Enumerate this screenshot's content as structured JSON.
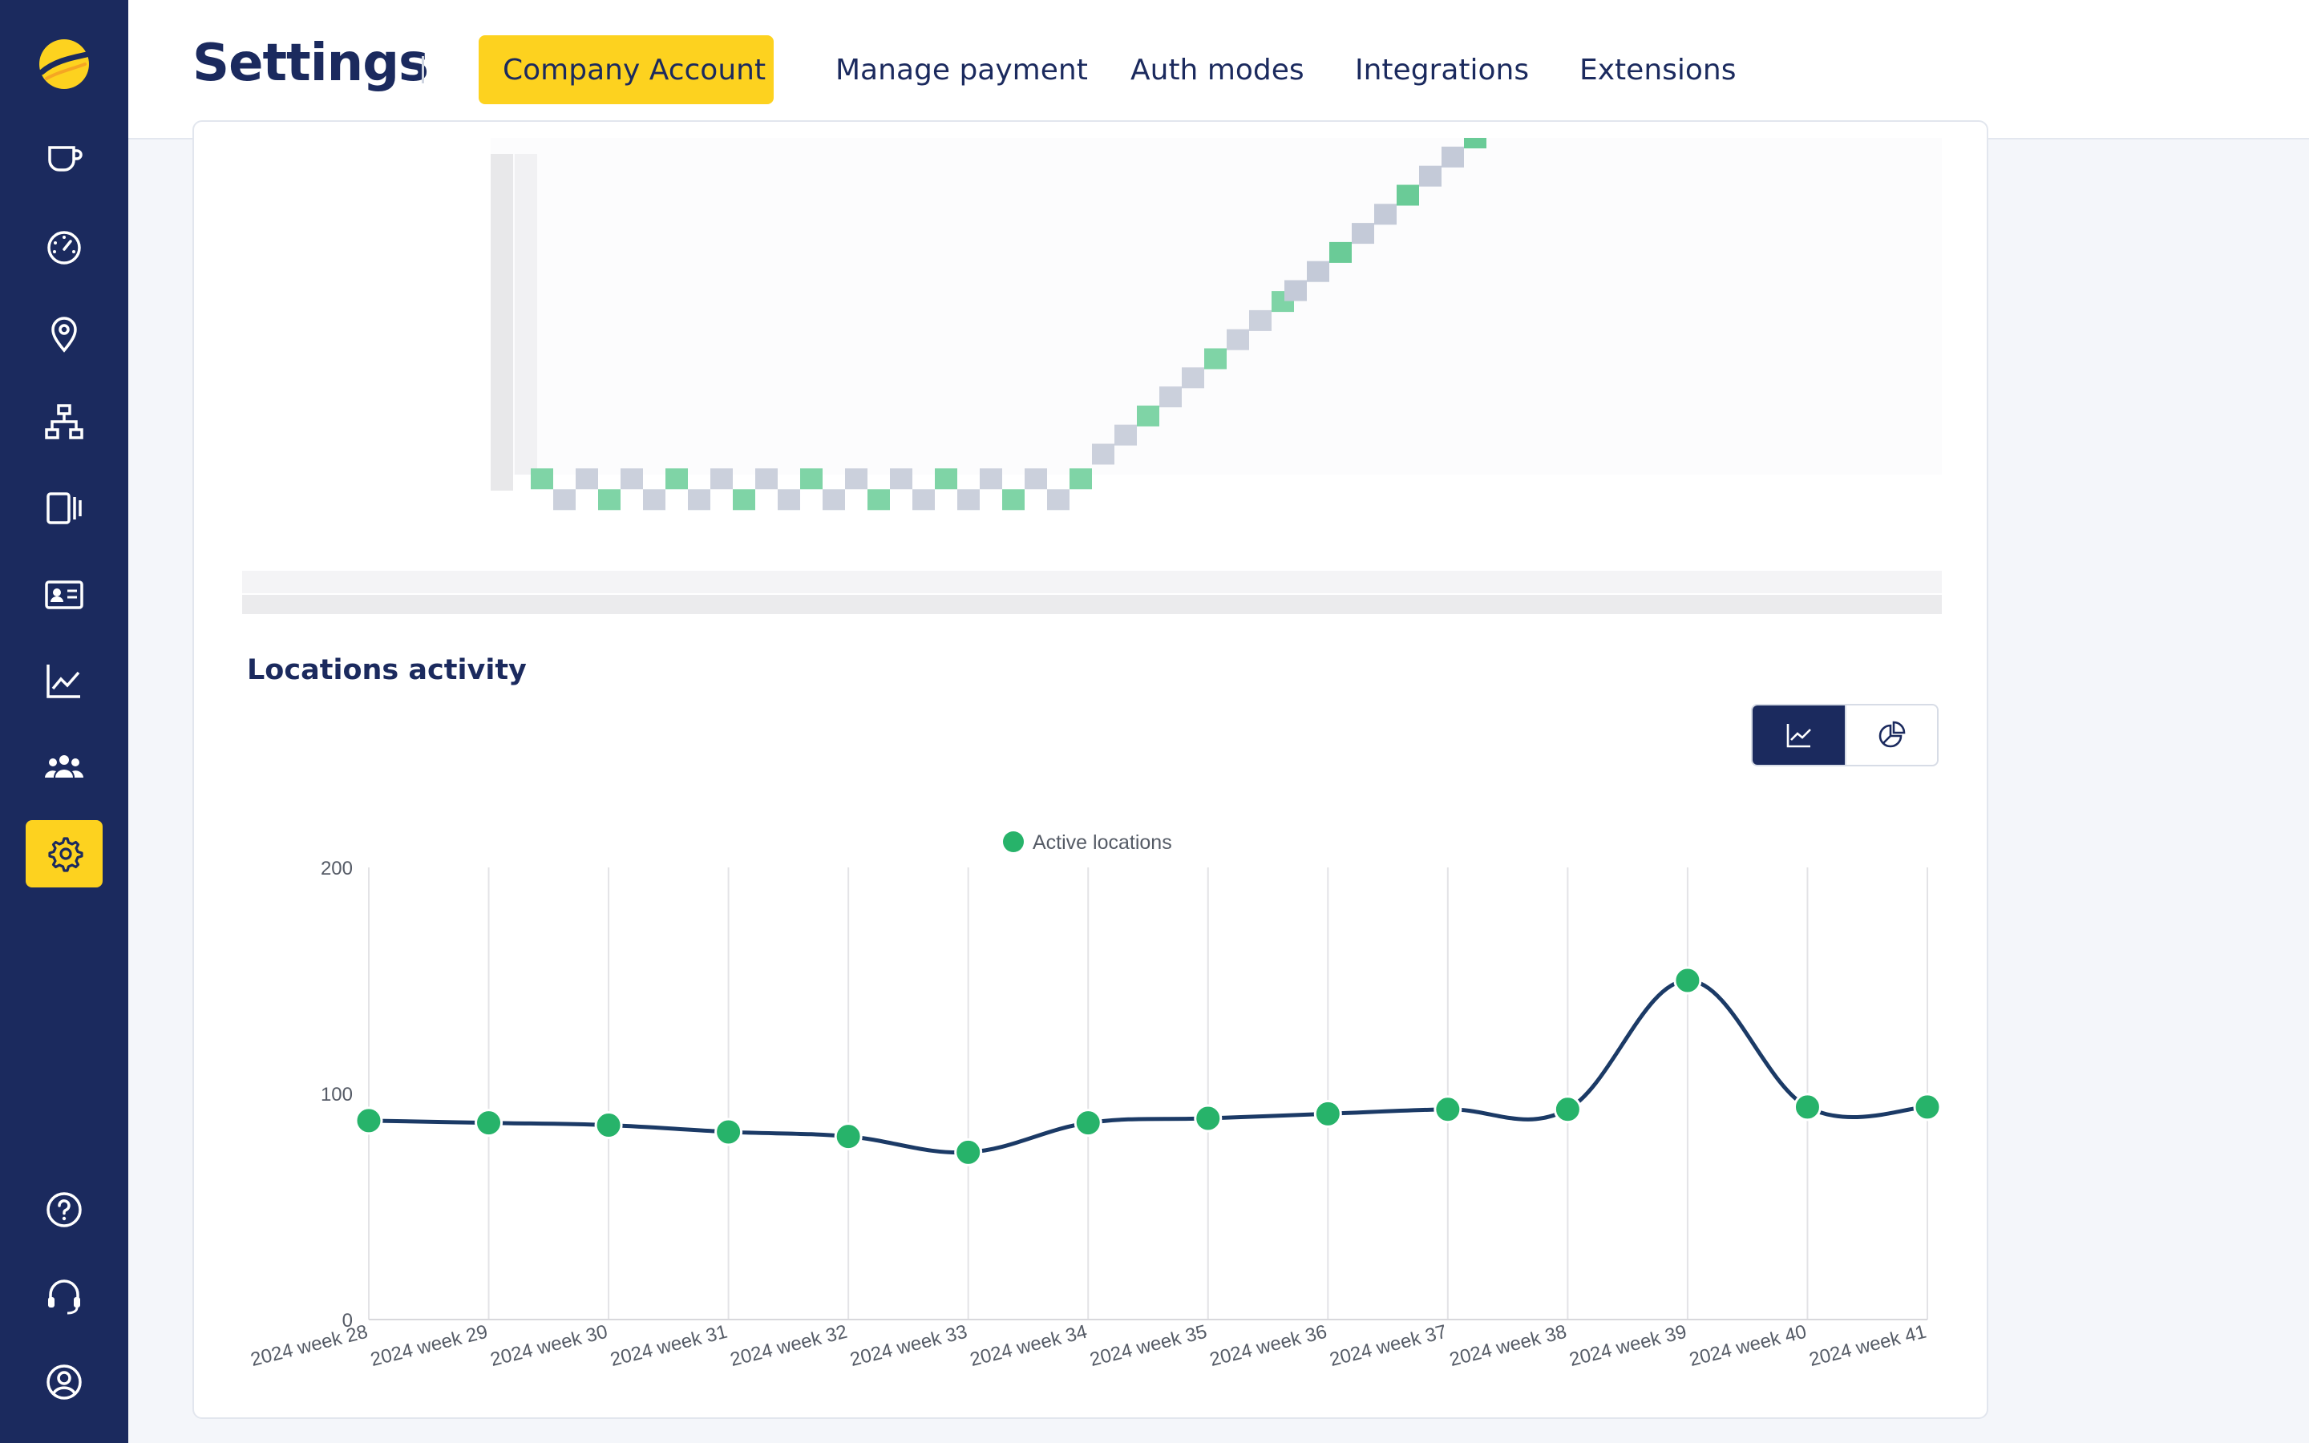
{
  "header": {
    "title": "Settings",
    "tabs": [
      {
        "label": "Company Account",
        "active": true
      },
      {
        "label": "Manage payment",
        "active": false
      },
      {
        "label": "Auth modes",
        "active": false
      },
      {
        "label": "Integrations",
        "active": false
      },
      {
        "label": "Extensions",
        "active": false
      }
    ]
  },
  "sidebar": {
    "items": [
      {
        "icon": "cup-icon"
      },
      {
        "icon": "dashboard-icon"
      },
      {
        "icon": "location-pin-icon"
      },
      {
        "icon": "network-icon"
      },
      {
        "icon": "device-icon"
      },
      {
        "icon": "id-card-icon"
      },
      {
        "icon": "line-chart-icon"
      },
      {
        "icon": "users-icon"
      },
      {
        "icon": "gear-icon",
        "active": true
      },
      {
        "icon": "help-icon"
      },
      {
        "icon": "headset-icon"
      },
      {
        "icon": "user-circle-icon"
      }
    ]
  },
  "section": {
    "title": "Locations activity"
  },
  "colors": {
    "sidebar_bg": "#1b2a5e",
    "accent": "#fdd21f",
    "series_line": "#1b3a66",
    "series_point": "#27b36a"
  },
  "chart_data": {
    "type": "line",
    "categories": [
      "2024 week 28",
      "2024 week 29",
      "2024 week 30",
      "2024 week 31",
      "2024 week 32",
      "2024 week 33",
      "2024 week 34",
      "2024 week 35",
      "2024 week 36",
      "2024 week 37",
      "2024 week 38",
      "2024 week 39",
      "2024 week 40",
      "2024 week 41"
    ],
    "series": [
      {
        "name": "Active locations",
        "values": [
          88,
          87,
          86,
          83,
          81,
          74,
          87,
          89,
          91,
          93,
          93,
          150,
          94,
          94
        ]
      }
    ],
    "ylim": [
      0,
      200
    ],
    "yticks": [
      "0",
      "100",
      "200"
    ],
    "legend": "top-center",
    "grid": "vertical"
  }
}
